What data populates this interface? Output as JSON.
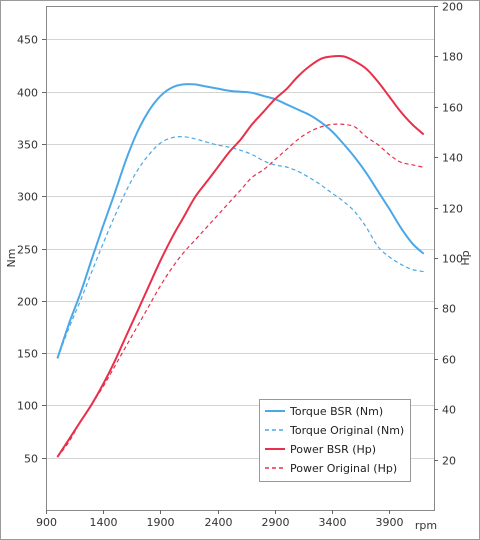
{
  "chart_data": {
    "type": "line",
    "title": "",
    "xlabel": "rpm",
    "ylabel_left": "Nm",
    "ylabel_right": "Hp",
    "x_ticks": [
      900,
      1400,
      1900,
      2400,
      2900,
      3400,
      3900
    ],
    "x_range": [
      900,
      4290
    ],
    "y_left_ticks": [
      50,
      100,
      150,
      200,
      250,
      300,
      350,
      400,
      450
    ],
    "y_left_range": [
      0,
      482
    ],
    "y_right_ticks": [
      20,
      40,
      60,
      80,
      100,
      120,
      140,
      160,
      180,
      200
    ],
    "y_right_range": [
      0,
      200
    ],
    "grid": "horizontal",
    "legend_position": "bottom-right",
    "series": [
      {
        "name": "Torque BSR (Nm)",
        "axis": "left",
        "color": "#4aa8e8",
        "dash": "solid",
        "x": [
          1000,
          1100,
          1200,
          1300,
          1400,
          1500,
          1600,
          1700,
          1800,
          1900,
          2000,
          2100,
          2200,
          2300,
          2400,
          2500,
          2600,
          2700,
          2800,
          2900,
          3000,
          3100,
          3200,
          3300,
          3400,
          3500,
          3600,
          3700,
          3800,
          3900,
          4000,
          4100,
          4200
        ],
        "y": [
          145,
          178,
          207,
          240,
          272,
          303,
          335,
          362,
          382,
          396,
          404,
          407,
          407,
          405,
          403,
          401,
          400,
          399,
          396,
          393,
          388,
          383,
          378,
          371,
          362,
          350,
          337,
          322,
          305,
          288,
          270,
          255,
          245
        ]
      },
      {
        "name": "Torque Original (Nm)",
        "axis": "left",
        "color": "#4aa8e8",
        "dash": "dashed",
        "x": [
          1000,
          1100,
          1200,
          1300,
          1400,
          1500,
          1600,
          1700,
          1800,
          1900,
          2000,
          2100,
          2200,
          2300,
          2400,
          2500,
          2600,
          2700,
          2800,
          2900,
          3000,
          3100,
          3200,
          3300,
          3400,
          3500,
          3600,
          3700,
          3800,
          3900,
          4000,
          4100,
          4200
        ],
        "y": [
          145,
          174,
          200,
          228,
          255,
          281,
          305,
          325,
          340,
          351,
          356,
          357,
          355,
          352,
          349,
          347,
          344,
          340,
          334,
          330,
          328,
          324,
          318,
          311,
          303,
          295,
          285,
          270,
          252,
          242,
          235,
          230,
          228
        ]
      },
      {
        "name": "Power BSR (Hp)",
        "axis": "right",
        "color": "#e8304a",
        "dash": "solid",
        "x": [
          1000,
          1100,
          1200,
          1300,
          1400,
          1500,
          1600,
          1700,
          1800,
          1900,
          2000,
          2100,
          2200,
          2300,
          2400,
          2500,
          2600,
          2700,
          2800,
          2900,
          3000,
          3100,
          3200,
          3300,
          3400,
          3500,
          3600,
          3700,
          3800,
          3900,
          4000,
          4100,
          4200
        ],
        "y": [
          21,
          28,
          35,
          42,
          50,
          59,
          69,
          79,
          89,
          99,
          108,
          116,
          124,
          130,
          136,
          142,
          147,
          153,
          158,
          163,
          167,
          172,
          176,
          179,
          180,
          180,
          178,
          175,
          170,
          164,
          158,
          153,
          149
        ]
      },
      {
        "name": "Power Original (Hp)",
        "axis": "right",
        "color": "#e8304a",
        "dash": "dashed",
        "x": [
          1000,
          1100,
          1200,
          1300,
          1400,
          1500,
          1600,
          1700,
          1800,
          1900,
          2000,
          2100,
          2200,
          2300,
          2400,
          2500,
          2600,
          2700,
          2800,
          2900,
          3000,
          3100,
          3200,
          3300,
          3400,
          3500,
          3600,
          3700,
          3800,
          3900,
          4000,
          4100,
          4200
        ],
        "y": [
          21,
          27,
          35,
          42,
          49,
          57,
          65,
          73,
          81,
          89,
          96,
          102,
          107,
          112,
          117,
          122,
          127,
          132,
          135,
          139,
          143,
          147,
          150,
          152,
          153,
          153,
          152,
          148,
          145,
          141,
          138,
          137,
          136
        ]
      }
    ]
  }
}
